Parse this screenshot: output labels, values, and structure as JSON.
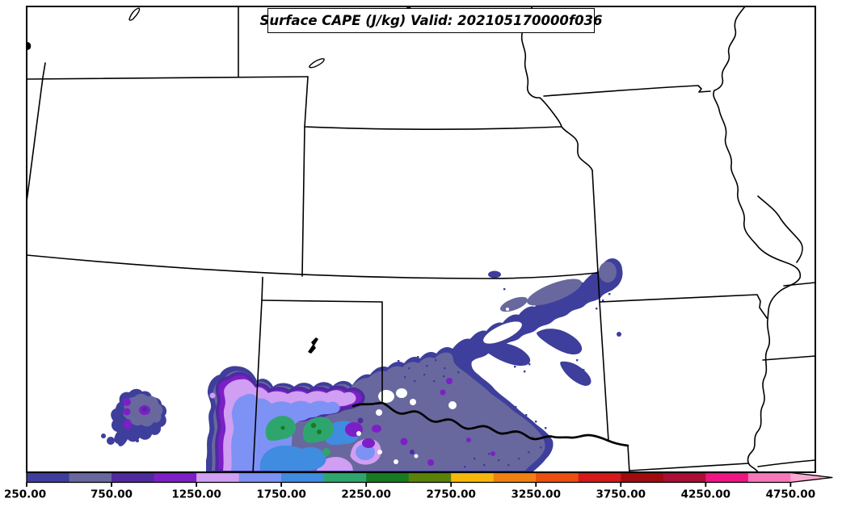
{
  "title_box": {
    "text": "Surface CAPE (J/kg) Valid: 202105170000f036"
  },
  "colorbar": {
    "tick_labels": [
      "250.00",
      "750.00",
      "1250.00",
      "1750.00",
      "2250.00",
      "2750.00",
      "3250.00",
      "3750.00",
      "4250.00",
      "4750.00"
    ],
    "segment_colors": [
      "#3e3e9c",
      "#68689e",
      "#4f2aa0",
      "#7d1fc6",
      "#d09ef2",
      "#7e92f5",
      "#3f8ce0",
      "#2fa56e",
      "#187a22",
      "#5a8209",
      "#f5b80a",
      "#f08012",
      "#ed4f0f",
      "#d6191a",
      "#a00b10",
      "#ab0f33",
      "#ee1483",
      "#f877bb"
    ],
    "arrow_color": "#fbaad2",
    "orientation": "horizontal"
  },
  "map_features": {
    "borders": [
      "state-borders-central-plains"
    ],
    "rivers": [
      "missouri-river",
      "mississippi-river",
      "ohio-river",
      "red-river",
      "des-moines-river"
    ],
    "lakes": [
      "seminoe-reservoir",
      "lake-mcconaughy",
      "small-nebraska-lake",
      "lake-meredith",
      "edge-lake"
    ]
  },
  "chart_data": {
    "type": "heatmap",
    "title": "Surface CAPE (J/kg) Valid: 202105170000f036",
    "variable": "Surface CAPE",
    "units": "J/kg",
    "valid_label": "202105170000",
    "forecast_hour_label": "f036",
    "legend_position": "bottom",
    "colorbar_levels": [
      250,
      500,
      750,
      1000,
      1250,
      1500,
      1750,
      2000,
      2250,
      2500,
      2750,
      3000,
      3250,
      3500,
      3750,
      4000,
      4250,
      4500,
      4750
    ],
    "colorbar_colors": [
      "#3e3e9c",
      "#68689e",
      "#4f2aa0",
      "#7d1fc6",
      "#d09ef2",
      "#7e92f5",
      "#3f8ce0",
      "#2fa56e",
      "#187a22",
      "#5a8209",
      "#f5b80a",
      "#f08012",
      "#ed4f0f",
      "#d6191a",
      "#a00b10",
      "#ab0f33",
      "#ee1483",
      "#f877bb"
    ],
    "colorbar_extend": "max",
    "value_summary": [
      {
        "region": "eastern New Mexico cluster",
        "range_jkg": [
          250,
          1250
        ]
      },
      {
        "region": "Texas Panhandle core (blue/green maxima)",
        "range_jkg": [
          1250,
          2500
        ]
      },
      {
        "region": "western Oklahoma / northwest Texas shield",
        "range_jkg": [
          250,
          1250
        ]
      },
      {
        "region": "arm northeast across Kansas to Missouri border",
        "range_jkg": [
          250,
          750
        ]
      }
    ]
  }
}
